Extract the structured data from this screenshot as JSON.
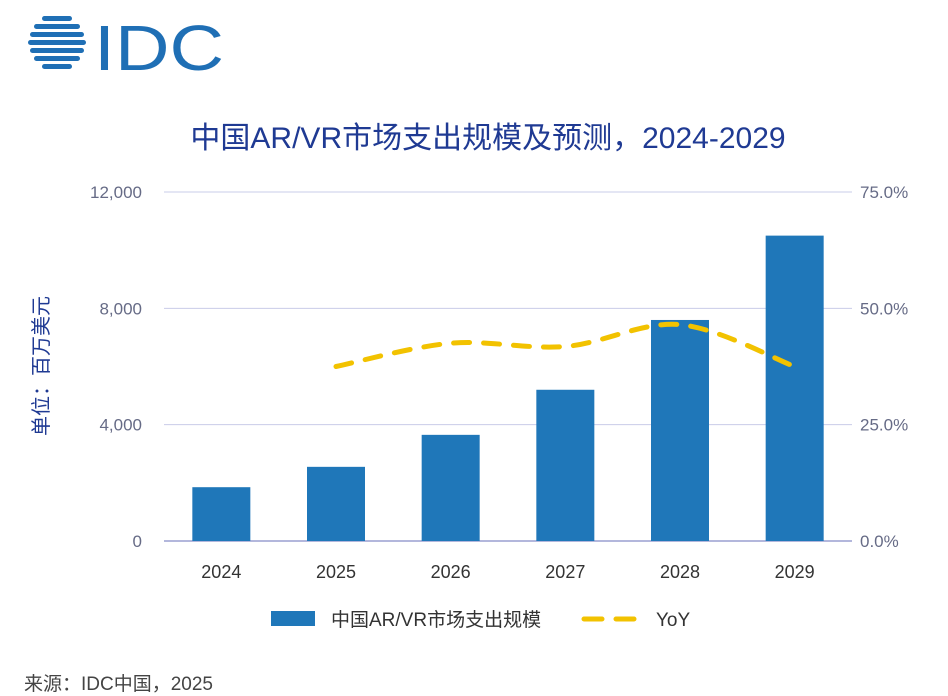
{
  "logo_text": "IDC",
  "source": "来源：IDC中国，2025",
  "colors": {
    "bar": "#1f77b9",
    "line": "#f2c200",
    "title": "#1f3a93",
    "axis": "#9a9fd0"
  },
  "chart_data": {
    "type": "bar",
    "title": "中国AR/VR市场支出规模及预测，2024-2029",
    "ylabel": "单位：百万美元",
    "categories": [
      "2024",
      "2025",
      "2026",
      "2027",
      "2028",
      "2029"
    ],
    "ylim": [
      0,
      12000
    ],
    "yticks": [
      "0",
      "4,000",
      "8,000",
      "12,000"
    ],
    "y2lim": [
      0,
      75
    ],
    "y2ticks": [
      "0.0%",
      "25.0%",
      "50.0%",
      "75.0%"
    ],
    "series": [
      {
        "name": "中国AR/VR市场支出规模",
        "type": "bar",
        "values": [
          1850,
          2550,
          3650,
          5200,
          7600,
          10500
        ]
      },
      {
        "name": "YoY",
        "type": "line",
        "style": "dashed",
        "axis": "right",
        "values": [
          null,
          37.5,
          42.5,
          41.8,
          46.5,
          37.5
        ]
      }
    ],
    "grid": true,
    "legend": "bottom"
  }
}
